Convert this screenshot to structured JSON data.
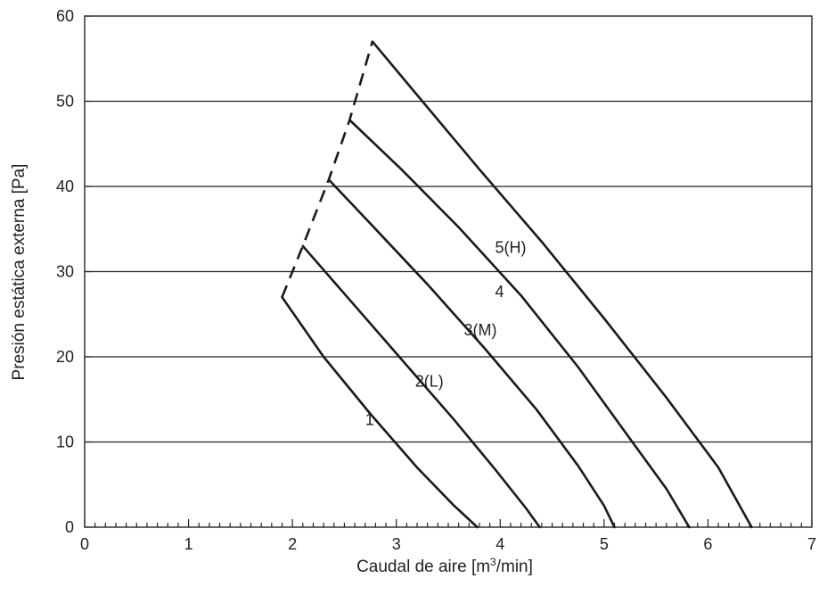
{
  "chart_data": {
    "type": "line",
    "xlabel": "Caudal de aire [m³/min]",
    "xlabel_base": "Caudal de aire [m",
    "xlabel_sup": "3",
    "xlabel_end": "/min]",
    "ylabel": "Presión estática externa [Pa]",
    "xlim": [
      0,
      7
    ],
    "ylim": [
      0,
      60
    ],
    "x_ticks": [
      0,
      1,
      2,
      3,
      4,
      5,
      6,
      7
    ],
    "y_ticks": [
      0,
      10,
      20,
      30,
      40,
      50,
      60
    ],
    "x_tick_labels": [
      "0",
      "1",
      "2",
      "3",
      "4",
      "5",
      "6",
      "7"
    ],
    "y_tick_labels": [
      "0",
      "10",
      "20",
      "30",
      "40",
      "50",
      "60"
    ],
    "x_minor_step": 0.1,
    "grid": "horizontal",
    "series": [
      {
        "name": "1",
        "label_pos": [
          2.7,
          12
        ],
        "points": [
          [
            1.9,
            27
          ],
          [
            2.3,
            20
          ],
          [
            2.75,
            13.3
          ],
          [
            3.2,
            7
          ],
          [
            3.55,
            2.6
          ],
          [
            3.78,
            0
          ]
        ]
      },
      {
        "name": "2(L)",
        "label_pos": [
          3.18,
          16.5
        ],
        "points": [
          [
            2.1,
            33
          ],
          [
            2.6,
            26
          ],
          [
            3.1,
            19
          ],
          [
            3.55,
            12.7
          ],
          [
            3.95,
            6.8
          ],
          [
            4.25,
            2.2
          ],
          [
            4.38,
            0
          ]
        ]
      },
      {
        "name": "3(M)",
        "label_pos": [
          3.65,
          22.5
        ],
        "points": [
          [
            2.35,
            40.8
          ],
          [
            2.8,
            35
          ],
          [
            3.3,
            28.5
          ],
          [
            3.85,
            21
          ],
          [
            4.35,
            13.8
          ],
          [
            4.75,
            7.2
          ],
          [
            5.0,
            2.5
          ],
          [
            5.1,
            0
          ]
        ]
      },
      {
        "name": "4",
        "label_pos": [
          3.95,
          27
        ],
        "points": [
          [
            2.55,
            47.8
          ],
          [
            3.05,
            42
          ],
          [
            3.6,
            35.2
          ],
          [
            4.2,
            27.2
          ],
          [
            4.75,
            18.8
          ],
          [
            5.2,
            11.2
          ],
          [
            5.6,
            4.5
          ],
          [
            5.82,
            0
          ]
        ]
      },
      {
        "name": "5(H)",
        "label_pos": [
          3.95,
          32.2
        ],
        "points": [
          [
            2.77,
            57
          ],
          [
            3.25,
            50
          ],
          [
            3.8,
            42
          ],
          [
            4.4,
            33.5
          ],
          [
            5.0,
            24.5
          ],
          [
            5.6,
            15.2
          ],
          [
            6.1,
            7
          ],
          [
            6.42,
            0
          ]
        ]
      }
    ],
    "envelope": {
      "style": "dashed",
      "points": [
        [
          1.9,
          27
        ],
        [
          2.1,
          33
        ],
        [
          2.35,
          40.8
        ],
        [
          2.55,
          47.8
        ],
        [
          2.77,
          57
        ]
      ]
    }
  }
}
